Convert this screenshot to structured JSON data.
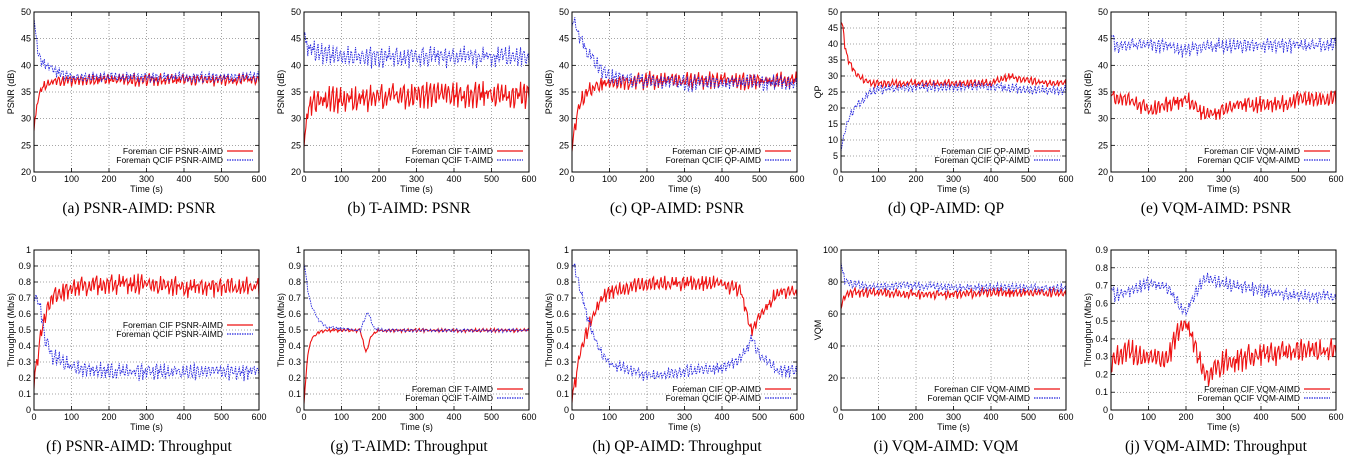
{
  "figure": {
    "xlabel": "Time (s)",
    "colors": {
      "cif": "#ee1111",
      "qcif": "#2222dd",
      "grid": "#000000"
    }
  },
  "chart_data": [
    {
      "type": "line",
      "caption": "(a) PSNR-AIMD: PSNR",
      "xlabel": "Time (s)",
      "ylabel": "PSNR (dB)",
      "xlim": [
        0,
        600
      ],
      "ylim": [
        20,
        50
      ],
      "xticks": [
        0,
        100,
        200,
        300,
        400,
        500,
        600
      ],
      "yticks": [
        20,
        25,
        30,
        35,
        40,
        45,
        50
      ],
      "grid": true,
      "legend": "bottom-right",
      "series": [
        {
          "name": "Foreman CIF PSNR-AIMD",
          "color": "#ee1111",
          "dash": "solid",
          "x": [
            0,
            5,
            10,
            20,
            40,
            60,
            100,
            150,
            200,
            250,
            300,
            350,
            400,
            450,
            500,
            550,
            600
          ],
          "y": [
            29,
            31,
            34,
            36,
            37,
            37.5,
            37.5,
            37.5,
            37.5,
            37.5,
            37.5,
            37.5,
            37.5,
            37.5,
            37.5,
            37.5,
            37.5
          ],
          "jitter": 1.5
        },
        {
          "name": "Foreman QCIF PSNR-AIMD",
          "color": "#2222dd",
          "dash": "dotted",
          "x": [
            0,
            3,
            10,
            20,
            40,
            60,
            100,
            150,
            200,
            250,
            300,
            350,
            400,
            450,
            500,
            550,
            600
          ],
          "y": [
            50,
            47,
            43,
            41,
            40,
            39,
            38,
            38,
            38,
            38,
            38,
            38,
            38,
            38,
            38,
            38,
            38
          ],
          "jitter": 1.3
        }
      ]
    },
    {
      "type": "line",
      "caption": "(b) T-AIMD: PSNR",
      "xlabel": "Time (s)",
      "ylabel": "PSNR (dB)",
      "xlim": [
        0,
        600
      ],
      "ylim": [
        20,
        50
      ],
      "xticks": [
        0,
        100,
        200,
        300,
        400,
        500,
        600
      ],
      "yticks": [
        20,
        25,
        30,
        35,
        40,
        45,
        50
      ],
      "grid": true,
      "legend": "bottom-right",
      "series": [
        {
          "name": "Foreman CIF T-AIMD",
          "color": "#ee1111",
          "dash": "solid",
          "x": [
            0,
            5,
            10,
            20,
            50,
            100,
            200,
            300,
            400,
            500,
            600
          ],
          "y": [
            26,
            29,
            32,
            33,
            34,
            34,
            34.5,
            35,
            35,
            35,
            35
          ],
          "jitter": 3.2
        },
        {
          "name": "Foreman QCIF T-AIMD",
          "color": "#2222dd",
          "dash": "dotted",
          "x": [
            0,
            5,
            10,
            30,
            100,
            200,
            300,
            400,
            500,
            600
          ],
          "y": [
            48,
            45,
            44,
            43,
            42,
            42,
            42,
            42,
            42,
            42
          ],
          "jitter": 2.6
        }
      ]
    },
    {
      "type": "line",
      "caption": "(c) QP-AIMD: PSNR",
      "xlabel": "Time (s)",
      "ylabel": "PSNR (dB)",
      "xlim": [
        0,
        600
      ],
      "ylim": [
        20,
        50
      ],
      "xticks": [
        0,
        100,
        200,
        300,
        400,
        500,
        600
      ],
      "yticks": [
        20,
        25,
        30,
        35,
        40,
        45,
        50
      ],
      "grid": true,
      "legend": "bottom-right",
      "series": [
        {
          "name": "Foreman CIF QP-AIMD",
          "color": "#ee1111",
          "dash": "solid",
          "x": [
            0,
            5,
            10,
            20,
            40,
            60,
            80,
            100,
            200,
            300,
            400,
            500,
            600
          ],
          "y": [
            26,
            28,
            30,
            33,
            35,
            36,
            37,
            37,
            37.5,
            37.5,
            37.5,
            37.5,
            37.5
          ],
          "jitter": 2.2
        },
        {
          "name": "Foreman QCIF QP-AIMD",
          "color": "#2222dd",
          "dash": "dotted",
          "x": [
            0,
            10,
            20,
            40,
            60,
            80,
            100,
            200,
            300,
            400,
            500,
            600
          ],
          "y": [
            49,
            48,
            46,
            43,
            41,
            39,
            38,
            37.5,
            37,
            37,
            37,
            37
          ],
          "jitter": 2.0
        }
      ]
    },
    {
      "type": "line",
      "caption": "(d) QP-AIMD: QP",
      "xlabel": "Time (s)",
      "ylabel": "QP",
      "xlim": [
        0,
        600
      ],
      "ylim": [
        0,
        50
      ],
      "xticks": [
        0,
        100,
        200,
        300,
        400,
        500,
        600
      ],
      "yticks": [
        0,
        5,
        10,
        15,
        20,
        25,
        30,
        35,
        40,
        45,
        50
      ],
      "grid": true,
      "legend": "bottom-right",
      "series": [
        {
          "name": "Foreman CIF QP-AIMD",
          "color": "#ee1111",
          "dash": "solid",
          "x": [
            0,
            5,
            10,
            20,
            40,
            60,
            80,
            100,
            200,
            300,
            400,
            450,
            500,
            550,
            600
          ],
          "y": [
            48,
            45,
            40,
            35,
            31,
            29,
            28,
            28,
            28,
            28,
            28,
            30,
            29,
            28,
            28
          ],
          "jitter": 1.6
        },
        {
          "name": "Foreman QCIF QP-AIMD",
          "color": "#2222dd",
          "dash": "dotted",
          "x": [
            0,
            5,
            10,
            20,
            40,
            60,
            80,
            100,
            200,
            300,
            400,
            500,
            600
          ],
          "y": [
            8,
            10,
            13,
            17,
            21,
            23,
            25,
            26,
            27,
            27,
            27,
            26,
            26
          ],
          "jitter": 2.0
        }
      ]
    },
    {
      "type": "line",
      "caption": "(e) VQM-AIMD: PSNR",
      "xlabel": "Time (s)",
      "ylabel": "PSNR (dB)",
      "xlim": [
        0,
        600
      ],
      "ylim": [
        20,
        50
      ],
      "xticks": [
        0,
        100,
        200,
        300,
        400,
        500,
        600
      ],
      "yticks": [
        20,
        25,
        30,
        35,
        40,
        45,
        50
      ],
      "grid": true,
      "legend": "bottom-right",
      "series": [
        {
          "name": "Foreman CIF VQM-AIMD",
          "color": "#ee1111",
          "dash": "solid",
          "x": [
            0,
            10,
            50,
            100,
            150,
            200,
            250,
            300,
            350,
            400,
            450,
            500,
            550,
            600
          ],
          "y": [
            35,
            34,
            34,
            32,
            33,
            34,
            31,
            32,
            33,
            33,
            33,
            34,
            34,
            34
          ],
          "jitter": 2.0
        },
        {
          "name": "Foreman QCIF VQM-AIMD",
          "color": "#2222dd",
          "dash": "dotted",
          "x": [
            0,
            10,
            50,
            100,
            150,
            200,
            250,
            300,
            350,
            400,
            450,
            500,
            550,
            600
          ],
          "y": [
            46,
            44,
            44,
            44,
            44,
            43,
            44,
            44,
            44,
            44,
            44,
            44,
            44,
            44
          ],
          "jitter": 1.8
        }
      ]
    },
    {
      "type": "line",
      "caption": "(f) PSNR-AIMD: Throughput",
      "xlabel": "Time (s)",
      "ylabel": "Throughput (Mb/s)",
      "xlim": [
        0,
        600
      ],
      "ylim": [
        0,
        1
      ],
      "xticks": [
        0,
        100,
        200,
        300,
        400,
        500,
        600
      ],
      "yticks": [
        0,
        0.1,
        0.2,
        0.3,
        0.4,
        0.5,
        0.6,
        0.7,
        0.8,
        0.9,
        1
      ],
      "grid": true,
      "legend": "middle-right",
      "series": [
        {
          "name": "Foreman CIF PSNR-AIMD",
          "color": "#ee1111",
          "dash": "solid",
          "x": [
            0,
            10,
            20,
            30,
            50,
            100,
            200,
            300,
            400,
            500,
            600
          ],
          "y": [
            0.2,
            0.35,
            0.5,
            0.6,
            0.72,
            0.78,
            0.8,
            0.8,
            0.78,
            0.78,
            0.78
          ],
          "jitter": 0.08
        },
        {
          "name": "Foreman QCIF PSNR-AIMD",
          "color": "#2222dd",
          "dash": "dotted",
          "x": [
            0,
            10,
            20,
            30,
            50,
            100,
            200,
            300,
            400,
            500,
            600
          ],
          "y": [
            0.72,
            0.7,
            0.6,
            0.45,
            0.35,
            0.28,
            0.25,
            0.25,
            0.25,
            0.25,
            0.25
          ],
          "jitter": 0.07
        }
      ]
    },
    {
      "type": "line",
      "caption": "(g) T-AIMD: Throughput",
      "xlabel": "Time (s)",
      "ylabel": "Throughput (Mb/s)",
      "xlim": [
        0,
        600
      ],
      "ylim": [
        0,
        1
      ],
      "xticks": [
        0,
        100,
        200,
        300,
        400,
        500,
        600
      ],
      "yticks": [
        0,
        0.1,
        0.2,
        0.3,
        0.4,
        0.5,
        0.6,
        0.7,
        0.8,
        0.9,
        1
      ],
      "grid": true,
      "legend": "bottom-right",
      "series": [
        {
          "name": "Foreman CIF T-AIMD",
          "color": "#ee1111",
          "dash": "solid",
          "x": [
            0,
            5,
            10,
            20,
            40,
            60,
            100,
            150,
            165,
            180,
            200,
            300,
            400,
            500,
            600
          ],
          "y": [
            0.05,
            0.2,
            0.35,
            0.45,
            0.49,
            0.5,
            0.5,
            0.5,
            0.36,
            0.47,
            0.5,
            0.5,
            0.5,
            0.5,
            0.5
          ],
          "jitter": 0.015
        },
        {
          "name": "Foreman QCIF T-AIMD",
          "color": "#2222dd",
          "dash": "dotted",
          "x": [
            0,
            5,
            10,
            20,
            40,
            60,
            100,
            150,
            170,
            185,
            200,
            300,
            400,
            500,
            600
          ],
          "y": [
            0.93,
            0.85,
            0.75,
            0.65,
            0.56,
            0.52,
            0.51,
            0.5,
            0.62,
            0.52,
            0.5,
            0.5,
            0.5,
            0.5,
            0.5
          ],
          "jitter": 0.015
        }
      ]
    },
    {
      "type": "line",
      "caption": "(h) QP-AIMD: Throughput",
      "xlabel": "Time (s)",
      "ylabel": "Throughput (Mb/s)",
      "xlim": [
        0,
        600
      ],
      "ylim": [
        0,
        1
      ],
      "xticks": [
        0,
        100,
        200,
        300,
        400,
        500,
        600
      ],
      "yticks": [
        0,
        0.1,
        0.2,
        0.3,
        0.4,
        0.5,
        0.6,
        0.7,
        0.8,
        0.9,
        1
      ],
      "grid": true,
      "legend": "bottom-right",
      "series": [
        {
          "name": "Foreman CIF QP-AIMD",
          "color": "#ee1111",
          "dash": "solid",
          "x": [
            0,
            10,
            20,
            40,
            60,
            80,
            100,
            200,
            300,
            400,
            450,
            480,
            500,
            550,
            600
          ],
          "y": [
            0.1,
            0.2,
            0.35,
            0.5,
            0.62,
            0.7,
            0.75,
            0.8,
            0.8,
            0.8,
            0.75,
            0.5,
            0.6,
            0.75,
            0.75
          ],
          "jitter": 0.06
        },
        {
          "name": "Foreman QCIF QP-AIMD",
          "color": "#2222dd",
          "dash": "dotted",
          "x": [
            0,
            10,
            20,
            40,
            60,
            80,
            100,
            200,
            300,
            400,
            450,
            480,
            500,
            550,
            600
          ],
          "y": [
            0.92,
            0.88,
            0.78,
            0.6,
            0.45,
            0.35,
            0.3,
            0.22,
            0.25,
            0.27,
            0.33,
            0.45,
            0.35,
            0.25,
            0.25
          ],
          "jitter": 0.05
        }
      ]
    },
    {
      "type": "line",
      "caption": "(i) VQM-AIMD: VQM",
      "xlabel": "Time (s)",
      "ylabel": "VQM",
      "xlim": [
        0,
        600
      ],
      "ylim": [
        0,
        100
      ],
      "xticks": [
        0,
        100,
        200,
        300,
        400,
        500,
        600
      ],
      "yticks": [
        0,
        20,
        40,
        60,
        80,
        100
      ],
      "grid": true,
      "legend": "bottom-right",
      "series": [
        {
          "name": "Foreman CIF VQM-AIMD",
          "color": "#ee1111",
          "dash": "solid",
          "x": [
            0,
            5,
            10,
            20,
            50,
            100,
            200,
            300,
            400,
            500,
            600
          ],
          "y": [
            65,
            70,
            72,
            74,
            74,
            74,
            73,
            73,
            74,
            74,
            74
          ],
          "jitter": 4
        },
        {
          "name": "Foreman QCIF VQM-AIMD",
          "color": "#2222dd",
          "dash": "dotted",
          "x": [
            0,
            3,
            10,
            20,
            50,
            100,
            200,
            300,
            400,
            500,
            600
          ],
          "y": [
            95,
            88,
            82,
            80,
            78,
            78,
            78,
            77,
            77,
            77,
            77
          ],
          "jitter": 3.5
        }
      ]
    },
    {
      "type": "line",
      "caption": "(j) VQM-AIMD: Throughput",
      "xlabel": "Time (s)",
      "ylabel": "Throughput (Mb/s)",
      "xlim": [
        0,
        600
      ],
      "ylim": [
        0,
        0.9
      ],
      "xticks": [
        0,
        100,
        200,
        300,
        400,
        500,
        600
      ],
      "yticks": [
        0,
        0.1,
        0.2,
        0.3,
        0.4,
        0.5,
        0.6,
        0.7,
        0.8,
        0.9
      ],
      "grid": true,
      "legend": "bottom-right",
      "series": [
        {
          "name": "Foreman CIF VQM-AIMD",
          "color": "#ee1111",
          "dash": "solid",
          "x": [
            0,
            10,
            50,
            100,
            150,
            180,
            200,
            220,
            250,
            300,
            350,
            400,
            450,
            500,
            550,
            600
          ],
          "y": [
            0.25,
            0.3,
            0.35,
            0.3,
            0.3,
            0.45,
            0.5,
            0.4,
            0.2,
            0.28,
            0.3,
            0.33,
            0.33,
            0.35,
            0.35,
            0.35
          ],
          "jitter": 0.09
        },
        {
          "name": "Foreman QCIF VQM-AIMD",
          "color": "#2222dd",
          "dash": "dotted",
          "x": [
            0,
            10,
            50,
            100,
            150,
            180,
            200,
            220,
            250,
            300,
            350,
            400,
            450,
            500,
            550,
            600
          ],
          "y": [
            0.7,
            0.65,
            0.68,
            0.72,
            0.7,
            0.6,
            0.55,
            0.65,
            0.75,
            0.72,
            0.7,
            0.68,
            0.66,
            0.65,
            0.65,
            0.65
          ],
          "jitter": 0.05
        }
      ]
    }
  ]
}
